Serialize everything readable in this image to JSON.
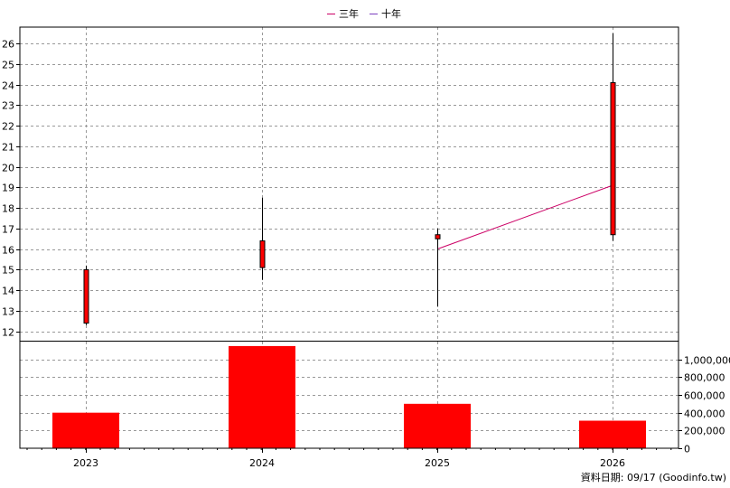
{
  "chart_data": {
    "type": "candlestick-with-volume",
    "legend": {
      "placement": "top-center",
      "items": [
        {
          "label": "三年",
          "color": "#cc0066"
        },
        {
          "label": "十年",
          "color": "#7b3fbf"
        }
      ]
    },
    "categories": [
      "2023",
      "2024",
      "2025",
      "2026"
    ],
    "price_axis": {
      "ylim": [
        11.5,
        26.8
      ],
      "ticks": [
        12,
        13,
        14,
        15,
        16,
        17,
        18,
        19,
        20,
        21,
        22,
        23,
        24,
        25,
        26
      ],
      "side": "left"
    },
    "volume_axis": {
      "ylim": [
        0,
        1200000
      ],
      "ticks": [
        0,
        200000,
        400000,
        600000,
        800000,
        1000000
      ],
      "tick_labels": [
        "0",
        "200,000",
        "400,000",
        "600,000",
        "800,000",
        "1,000,000"
      ],
      "side": "right"
    },
    "candles": [
      {
        "x": "2023",
        "open": 12.4,
        "close": 15.0,
        "high": 15.2,
        "low": 12.3
      },
      {
        "x": "2024",
        "open": 15.1,
        "close": 16.4,
        "high": 18.5,
        "low": 14.5
      },
      {
        "x": "2025",
        "open": 16.5,
        "close": 16.7,
        "high": 17.0,
        "low": 13.2
      },
      {
        "x": "2026",
        "open": 16.7,
        "close": 24.1,
        "high": 26.5,
        "low": 16.4
      }
    ],
    "series": [
      {
        "name": "三年",
        "color": "#cc0066",
        "points": [
          {
            "x": "2025",
            "y": 16.0
          },
          {
            "x": "2026",
            "y": 19.1
          }
        ]
      }
    ],
    "volume": [
      400000,
      1150000,
      500000,
      310000
    ],
    "candle_color": "#ff0000",
    "volume_color": "#ff0000",
    "grid": true,
    "footer": "資料日期: 09/17  (Goodinfo.tw)"
  }
}
